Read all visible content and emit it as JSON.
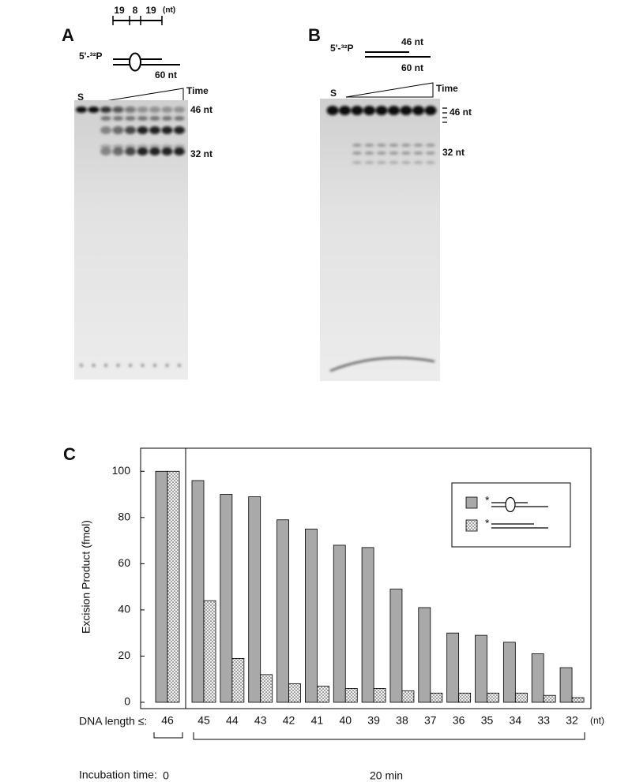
{
  "panels": {
    "A": {
      "label": "A",
      "schematic": {
        "segments": [
          "19",
          "8",
          "19"
        ],
        "unit": "(nt)",
        "probe": "5'-³²P",
        "length": "60 nt"
      },
      "lanes": {
        "standard": "S",
        "time": "Time"
      },
      "markers": [
        "46 nt",
        "32 nt"
      ]
    },
    "B": {
      "label": "B",
      "schematic": {
        "probe": "5'-³²P",
        "top": "46 nt",
        "bottom": "60 nt"
      },
      "lanes": {
        "standard": "S",
        "time": "Time"
      },
      "markers": [
        "46 nt",
        "32 nt"
      ]
    }
  },
  "chart_data": {
    "type": "bar",
    "panel_label": "C",
    "ylabel": "Excision Product (fmol)",
    "xlabel": "DNA length ≤:",
    "x_unit": "(nt)",
    "incubation_label": "Incubation time:",
    "incubation": [
      "0",
      "20 min"
    ],
    "categories": [
      "46",
      "45",
      "44",
      "43",
      "42",
      "41",
      "40",
      "39",
      "38",
      "37",
      "36",
      "35",
      "34",
      "33",
      "32"
    ],
    "series": [
      {
        "name": "*",
        "color": "#a9a9a9",
        "values": [
          100,
          96,
          90,
          89,
          79,
          75,
          68,
          67,
          49,
          41,
          30,
          29,
          26,
          21,
          15
        ]
      },
      {
        "name": "*",
        "color": "dotted",
        "values": [
          100,
          44,
          19,
          12,
          8,
          7,
          6,
          6,
          5,
          4,
          4,
          4,
          4,
          3,
          2
        ]
      }
    ],
    "ylim": [
      0,
      110
    ],
    "yticks": [
      0,
      20,
      40,
      60,
      80,
      100
    ],
    "grid": false
  }
}
